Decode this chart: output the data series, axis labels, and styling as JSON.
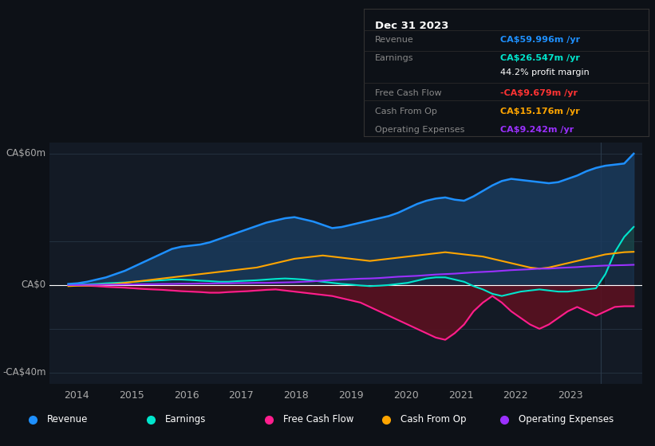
{
  "bg_color": "#0d1117",
  "plot_bg": "#131a25",
  "ylim": [
    -45,
    65
  ],
  "xlim": [
    2013.5,
    2024.3
  ],
  "xticks": [
    2014,
    2015,
    2016,
    2017,
    2018,
    2019,
    2020,
    2021,
    2022,
    2023
  ],
  "colors": {
    "revenue": "#1e90ff",
    "earnings": "#00e5cc",
    "fcf": "#ff1e8e",
    "cashfromop": "#ffa500",
    "opex": "#9b30ff"
  },
  "legend": [
    {
      "label": "Revenue",
      "color": "#1e90ff"
    },
    {
      "label": "Earnings",
      "color": "#00e5cc"
    },
    {
      "label": "Free Cash Flow",
      "color": "#ff1e8e"
    },
    {
      "label": "Cash From Op",
      "color": "#ffa500"
    },
    {
      "label": "Operating Expenses",
      "color": "#9b30ff"
    }
  ],
  "tooltip": {
    "title": "Dec 31 2023",
    "rows": [
      {
        "label": "Revenue",
        "value": "CA$59.996m /yr",
        "color": "#1e90ff"
      },
      {
        "label": "Earnings",
        "value": "CA$26.547m /yr",
        "color": "#00e5cc"
      },
      {
        "label": "",
        "value": "44.2% profit margin",
        "color": "#ffffff"
      },
      {
        "label": "Free Cash Flow",
        "value": "-CA$9.679m /yr",
        "color": "#ff3333"
      },
      {
        "label": "Cash From Op",
        "value": "CA$15.176m /yr",
        "color": "#ffa500"
      },
      {
        "label": "Operating Expenses",
        "value": "CA$9.242m /yr",
        "color": "#9b30ff"
      }
    ]
  },
  "revenue": [
    0.5,
    0.8,
    1.5,
    2.5,
    3.5,
    5.0,
    6.5,
    8.5,
    10.5,
    12.5,
    14.5,
    16.5,
    17.5,
    18.0,
    18.5,
    19.5,
    21.0,
    22.5,
    24.0,
    25.5,
    27.0,
    28.5,
    29.5,
    30.5,
    31.0,
    30.0,
    29.0,
    27.5,
    26.0,
    26.5,
    27.5,
    28.5,
    29.5,
    30.5,
    31.5,
    33.0,
    35.0,
    37.0,
    38.5,
    39.5,
    40.0,
    39.0,
    38.5,
    40.5,
    43.0,
    45.5,
    47.5,
    48.5,
    48.0,
    47.5,
    47.0,
    46.5,
    47.0,
    48.5,
    50.0,
    52.0,
    53.5,
    54.5,
    55.0,
    55.5,
    59.996
  ],
  "earnings": [
    0.1,
    0.2,
    0.3,
    0.5,
    0.8,
    1.0,
    1.2,
    1.5,
    1.8,
    2.0,
    2.2,
    2.5,
    2.5,
    2.3,
    2.0,
    1.8,
    1.5,
    1.5,
    1.8,
    2.0,
    2.2,
    2.5,
    2.8,
    3.0,
    2.8,
    2.5,
    2.0,
    1.5,
    1.0,
    0.5,
    0.2,
    -0.2,
    -0.5,
    -0.3,
    0.0,
    0.5,
    1.0,
    2.0,
    3.0,
    3.5,
    3.5,
    2.5,
    1.5,
    -0.5,
    -2.0,
    -4.0,
    -5.0,
    -4.0,
    -3.0,
    -2.5,
    -2.0,
    -2.5,
    -3.0,
    -3.0,
    -2.5,
    -2.0,
    -1.5,
    5.0,
    15.0,
    22.0,
    26.547
  ],
  "fcf": [
    0.0,
    -0.2,
    -0.3,
    -0.5,
    -0.8,
    -1.0,
    -1.2,
    -1.5,
    -1.8,
    -2.0,
    -2.2,
    -2.5,
    -2.8,
    -3.0,
    -3.2,
    -3.5,
    -3.5,
    -3.2,
    -3.0,
    -2.8,
    -2.5,
    -2.2,
    -2.0,
    -2.5,
    -3.0,
    -3.5,
    -4.0,
    -4.5,
    -5.0,
    -6.0,
    -7.0,
    -8.0,
    -10.0,
    -12.0,
    -14.0,
    -16.0,
    -18.0,
    -20.0,
    -22.0,
    -24.0,
    -25.0,
    -22.0,
    -18.0,
    -12.0,
    -8.0,
    -5.0,
    -8.0,
    -12.0,
    -15.0,
    -18.0,
    -20.0,
    -18.0,
    -15.0,
    -12.0,
    -10.0,
    -12.0,
    -14.0,
    -12.0,
    -10.0,
    -9.679,
    -9.679
  ],
  "cashfromop": [
    -0.5,
    -0.3,
    -0.2,
    0.0,
    0.2,
    0.5,
    1.0,
    1.5,
    2.0,
    2.5,
    3.0,
    3.5,
    4.0,
    4.5,
    5.0,
    5.5,
    6.0,
    6.5,
    7.0,
    7.5,
    8.0,
    9.0,
    10.0,
    11.0,
    12.0,
    12.5,
    13.0,
    13.5,
    13.0,
    12.5,
    12.0,
    11.5,
    11.0,
    11.5,
    12.0,
    12.5,
    13.0,
    13.5,
    14.0,
    14.5,
    15.0,
    14.5,
    14.0,
    13.5,
    13.0,
    12.0,
    11.0,
    10.0,
    9.0,
    8.0,
    7.5,
    8.0,
    9.0,
    10.0,
    11.0,
    12.0,
    13.0,
    14.0,
    14.5,
    15.0,
    15.176
  ],
  "opex": [
    0.0,
    0.0,
    0.1,
    0.1,
    0.2,
    0.2,
    0.3,
    0.3,
    0.4,
    0.4,
    0.5,
    0.5,
    0.6,
    0.6,
    0.7,
    0.7,
    0.8,
    0.8,
    0.9,
    0.9,
    1.0,
    1.0,
    1.1,
    1.2,
    1.3,
    1.5,
    1.7,
    2.0,
    2.3,
    2.5,
    2.7,
    2.9,
    3.0,
    3.2,
    3.5,
    3.8,
    4.0,
    4.2,
    4.5,
    4.8,
    5.0,
    5.2,
    5.5,
    5.8,
    6.0,
    6.2,
    6.5,
    6.8,
    7.0,
    7.2,
    7.5,
    7.5,
    7.8,
    8.0,
    8.2,
    8.5,
    8.7,
    8.9,
    9.0,
    9.1,
    9.242
  ]
}
